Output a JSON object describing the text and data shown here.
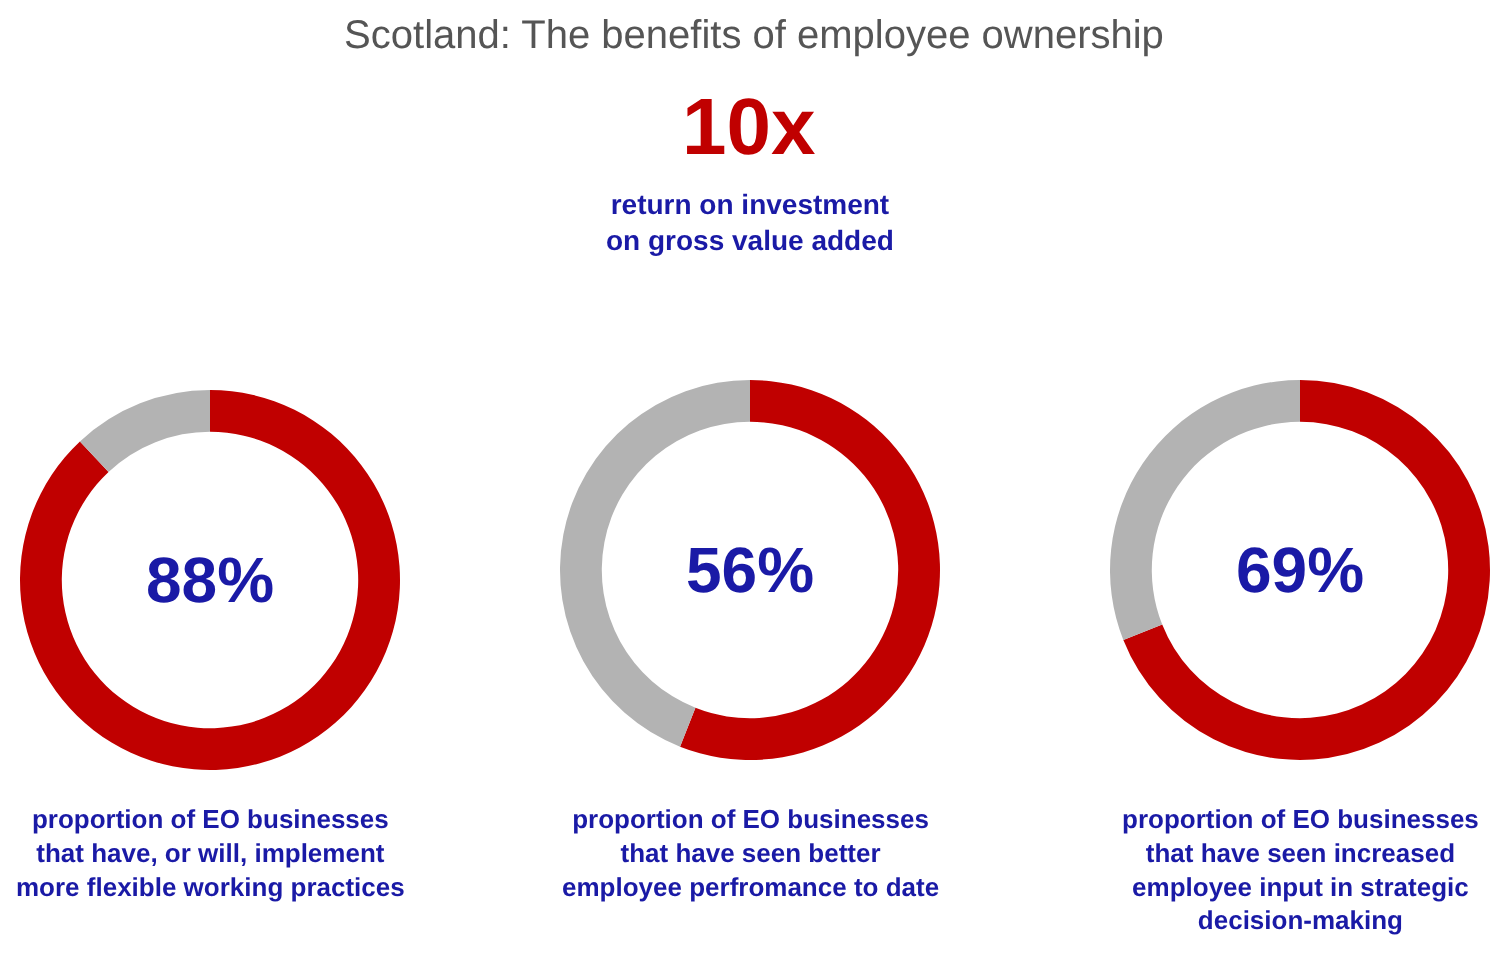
{
  "chart_data": [
    {
      "type": "other",
      "title": "Scotland: The benefits of employee ownership",
      "annotations": [
        "10x",
        "return on investment\non gross value added"
      ]
    },
    {
      "type": "donut",
      "categories": [
        null,
        null
      ],
      "values": [
        88,
        12
      ],
      "colors": [
        "#c00000",
        "#b3b3b3"
      ],
      "annotations": [
        "88%",
        "proportion of EO businesses\nthat have, or will, implement\nmore flexible working practices"
      ]
    },
    {
      "type": "donut",
      "categories": [
        null,
        null
      ],
      "values": [
        56,
        44
      ],
      "colors": [
        "#c00000",
        "#b3b3b3"
      ],
      "annotations": [
        "56%",
        "proportion of EO businesses\nthat have seen better\nemployee perfromance to date"
      ]
    },
    {
      "type": "donut",
      "categories": [
        null,
        null
      ],
      "values": [
        69,
        31
      ],
      "colors": [
        "#c00000",
        "#b3b3b3"
      ],
      "annotations": [
        "69%",
        "proportion of EO businesses\nthat have seen increased\nemployee input in strategic\ndecision-making"
      ]
    }
  ]
}
